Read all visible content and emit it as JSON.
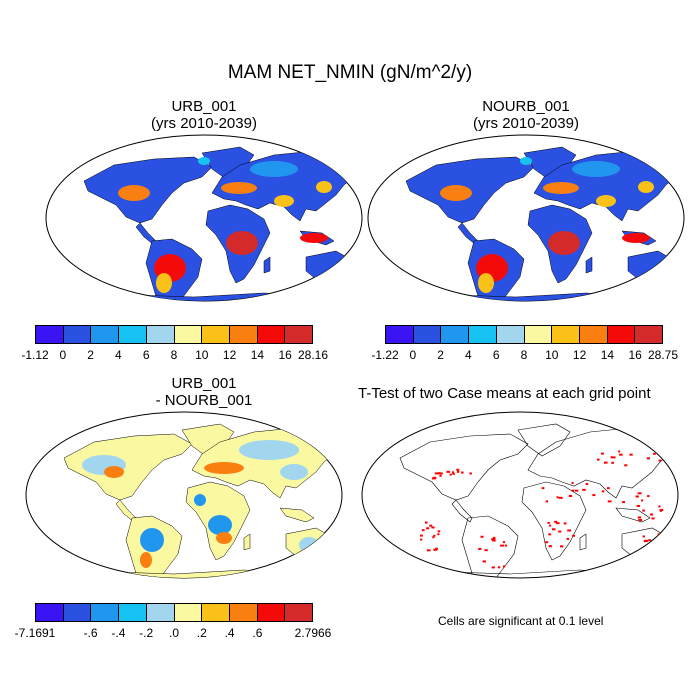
{
  "main_title": "MAM NET_NMIN (gN/m^2/y)",
  "panels": {
    "urb": {
      "title_line1": "URB_001",
      "title_line2": "(yrs 2010-2039)"
    },
    "nourb": {
      "title_line1": "NOURB_001",
      "title_line2": "(yrs 2010-2039)"
    },
    "diff": {
      "title_line1": "URB_001",
      "title_line2": "- NOURB_001"
    },
    "ttest": {
      "title": "T-Test of two Case means at each grid point",
      "note": "Cells are significant at 0.1 level"
    }
  },
  "colorbars": {
    "urb": {
      "colors": [
        "#3a14f5",
        "#2a51e2",
        "#2196ef",
        "#16c2f2",
        "#a2d6ee",
        "#faf8a0",
        "#fac218",
        "#f98010",
        "#f50a0a",
        "#d42a2a"
      ],
      "labels": [
        "-1.12",
        "0",
        "2",
        "4",
        "6",
        "8",
        "10",
        "12",
        "14",
        "16",
        "28.16"
      ]
    },
    "nourb": {
      "colors": [
        "#3a14f5",
        "#2a51e2",
        "#2196ef",
        "#16c2f2",
        "#a2d6ee",
        "#faf8a0",
        "#fac218",
        "#f98010",
        "#f50a0a",
        "#d42a2a"
      ],
      "labels": [
        "-1.22",
        "0",
        "2",
        "4",
        "6",
        "8",
        "10",
        "12",
        "14",
        "16",
        "28.75"
      ]
    },
    "diff": {
      "colors": [
        "#3a14f5",
        "#2a51e2",
        "#2196ef",
        "#16c2f2",
        "#a2d6ee",
        "#faf8a0",
        "#fac218",
        "#f98010",
        "#f50a0a",
        "#d42a2a"
      ],
      "labels": [
        "-7.1691",
        "",
        "-.6",
        "-.4",
        "-.2",
        ".0",
        ".2",
        ".4",
        ".6",
        "",
        "2.7966"
      ]
    }
  },
  "colors": {
    "significant_cells": "#ff0000",
    "land_fill_urb": "#2a51e2",
    "land_fill_diff": "#faf8a0"
  }
}
